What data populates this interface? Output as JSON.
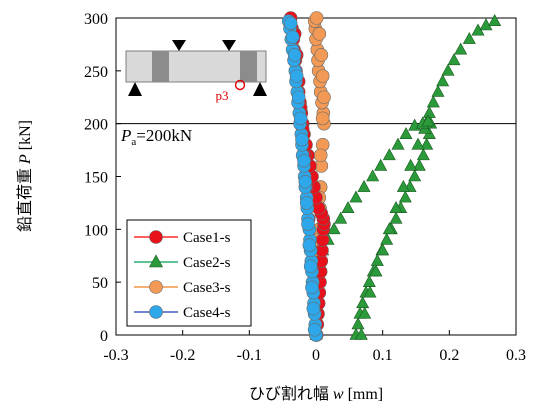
{
  "chart_data": {
    "type": "scatter",
    "title": "",
    "xlabel": "ひび割れ幅 w [mm]",
    "ylabel": "鉛直荷重 P [kN]",
    "xlabel_parts": {
      "text": "ひび割れ幅 ",
      "var": "w",
      "unit": " [mm]"
    },
    "ylabel_parts": {
      "text": "鉛直荷重 ",
      "var": "P",
      "unit": " [kN]"
    },
    "xlim": [
      -0.3,
      0.3
    ],
    "ylim": [
      0,
      300
    ],
    "x_ticks": [
      -0.3,
      -0.2,
      -0.1,
      0,
      0.1,
      0.2,
      0.3
    ],
    "x_tick_labels": [
      "-0.3",
      "-0.2",
      "-0.1",
      "0",
      "0.1",
      "0.2",
      "0.3"
    ],
    "y_ticks": [
      0,
      50,
      100,
      150,
      200,
      250,
      300
    ],
    "y_tick_labels": [
      "0",
      "50",
      "100",
      "150",
      "200",
      "250",
      "300"
    ],
    "grid": false,
    "legend_position": "bottom-left",
    "reference_line": {
      "y": 200,
      "label_var": "P",
      "label_sub": "a",
      "label_value": "=200kN"
    },
    "inset_label": "p3",
    "series": [
      {
        "name": "Case1-s",
        "marker": "circle",
        "line_color": "#ff0000",
        "fill_color": "#e8101a",
        "points": [
          [
            0.001,
            0
          ],
          [
            0.002,
            10
          ],
          [
            0.003,
            20
          ],
          [
            0.004,
            30
          ],
          [
            0.005,
            40
          ],
          [
            0.006,
            50
          ],
          [
            0.007,
            60
          ],
          [
            0.008,
            70
          ],
          [
            0.009,
            80
          ],
          [
            0.01,
            90
          ],
          [
            0.011,
            100
          ],
          [
            0.012,
            105
          ],
          [
            0.011,
            110
          ],
          [
            0.008,
            115
          ],
          [
            0.004,
            120
          ],
          [
            0.0,
            130
          ],
          [
            -0.003,
            140
          ],
          [
            -0.006,
            150
          ],
          [
            -0.009,
            160
          ],
          [
            -0.012,
            170
          ],
          [
            -0.015,
            180
          ],
          [
            -0.018,
            190
          ],
          [
            -0.02,
            200
          ],
          [
            -0.022,
            210
          ],
          [
            -0.024,
            220
          ],
          [
            -0.026,
            230
          ],
          [
            -0.028,
            240
          ],
          [
            -0.03,
            250
          ],
          [
            -0.031,
            260
          ],
          [
            -0.033,
            270
          ],
          [
            -0.034,
            280
          ],
          [
            -0.036,
            290
          ],
          [
            -0.04,
            297
          ],
          [
            -0.038,
            300
          ],
          [
            0.0,
            0
          ],
          [
            -0.002,
            20
          ],
          [
            -0.005,
            50
          ],
          [
            -0.008,
            80
          ],
          [
            -0.011,
            110
          ],
          [
            -0.014,
            140
          ],
          [
            -0.017,
            170
          ],
          [
            -0.02,
            195
          ],
          [
            -0.023,
            215
          ],
          [
            -0.026,
            240
          ],
          [
            -0.029,
            265
          ],
          [
            -0.032,
            285
          ]
        ]
      },
      {
        "name": "Case2-s",
        "marker": "triangle",
        "line_color": "#00a050",
        "fill_color": "#2a9a3a",
        "points": [
          [
            0.06,
            0
          ],
          [
            0.063,
            10
          ],
          [
            0.066,
            20
          ],
          [
            0.07,
            30
          ],
          [
            0.075,
            40
          ],
          [
            0.08,
            50
          ],
          [
            0.086,
            60
          ],
          [
            0.092,
            70
          ],
          [
            0.099,
            80
          ],
          [
            0.106,
            90
          ],
          [
            0.113,
            100
          ],
          [
            0.12,
            110
          ],
          [
            0.127,
            120
          ],
          [
            0.134,
            130
          ],
          [
            0.141,
            140
          ],
          [
            0.148,
            150
          ],
          [
            0.155,
            160
          ],
          [
            0.161,
            170
          ],
          [
            0.166,
            180
          ],
          [
            0.17,
            190
          ],
          [
            0.172,
            200
          ],
          [
            0.068,
            0
          ],
          [
            0.073,
            20
          ],
          [
            0.081,
            40
          ],
          [
            0.09,
            60
          ],
          [
            0.1,
            80
          ],
          [
            0.11,
            100
          ],
          [
            0.12,
            120
          ],
          [
            0.131,
            140
          ],
          [
            0.142,
            160
          ],
          [
            0.153,
            180
          ],
          [
            0.163,
            195
          ],
          [
            0.165,
            200
          ],
          [
            0.17,
            210
          ],
          [
            0.176,
            220
          ],
          [
            0.183,
            230
          ],
          [
            0.19,
            240
          ],
          [
            0.198,
            250
          ],
          [
            0.207,
            260
          ],
          [
            0.217,
            270
          ],
          [
            0.23,
            280
          ],
          [
            0.243,
            288
          ],
          [
            0.255,
            293
          ],
          [
            0.268,
            297
          ],
          [
            0.0,
            0
          ],
          [
            0.0,
            20
          ],
          [
            0.001,
            40
          ],
          [
            0.002,
            60
          ],
          [
            0.004,
            70
          ],
          [
            0.01,
            80
          ],
          [
            0.018,
            90
          ],
          [
            0.027,
            100
          ],
          [
            0.037,
            110
          ],
          [
            0.048,
            120
          ],
          [
            0.06,
            130
          ],
          [
            0.072,
            140
          ],
          [
            0.085,
            150
          ],
          [
            0.097,
            160
          ],
          [
            0.11,
            170
          ],
          [
            0.123,
            180
          ],
          [
            0.135,
            190
          ],
          [
            0.148,
            198
          ],
          [
            0.16,
            200
          ],
          [
            0.168,
            202
          ]
        ]
      },
      {
        "name": "Case3-s",
        "marker": "circle",
        "line_color": "#f08020",
        "fill_color": "#f29a55",
        "points": [
          [
            0.0,
            0
          ],
          [
            0.001,
            20
          ],
          [
            0.002,
            40
          ],
          [
            0.003,
            60
          ],
          [
            0.004,
            80
          ],
          [
            0.005,
            100
          ],
          [
            0.006,
            120
          ],
          [
            0.007,
            140
          ],
          [
            0.008,
            160
          ],
          [
            0.01,
            180
          ],
          [
            0.012,
            200
          ],
          [
            0.011,
            210
          ],
          [
            0.009,
            220
          ],
          [
            0.007,
            230
          ],
          [
            0.006,
            240
          ],
          [
            0.004,
            250
          ],
          [
            0.003,
            260
          ],
          [
            0.002,
            270
          ],
          [
            0.0,
            280
          ],
          [
            -0.001,
            290
          ],
          [
            -0.002,
            297
          ],
          [
            0.001,
            10
          ],
          [
            0.002,
            50
          ],
          [
            0.003,
            90
          ],
          [
            0.005,
            130
          ],
          [
            0.007,
            170
          ],
          [
            0.01,
            205
          ],
          [
            0.012,
            225
          ],
          [
            0.01,
            245
          ],
          [
            0.008,
            265
          ],
          [
            0.005,
            285
          ],
          [
            0.001,
            300
          ]
        ]
      },
      {
        "name": "Case4-s",
        "marker": "circle",
        "line_color": "#1f3fb5",
        "fill_color": "#2ea8ea",
        "points": [
          [
            0.0,
            0
          ],
          [
            -0.001,
            10
          ],
          [
            -0.002,
            20
          ],
          [
            -0.003,
            30
          ],
          [
            -0.004,
            40
          ],
          [
            -0.005,
            50
          ],
          [
            -0.006,
            60
          ],
          [
            -0.007,
            70
          ],
          [
            -0.008,
            80
          ],
          [
            -0.009,
            90
          ],
          [
            -0.01,
            100
          ],
          [
            -0.012,
            110
          ],
          [
            -0.013,
            120
          ],
          [
            -0.014,
            130
          ],
          [
            -0.016,
            140
          ],
          [
            -0.017,
            150
          ],
          [
            -0.018,
            160
          ],
          [
            -0.02,
            170
          ],
          [
            -0.021,
            180
          ],
          [
            -0.022,
            190
          ],
          [
            -0.024,
            200
          ],
          [
            -0.025,
            210
          ],
          [
            -0.027,
            220
          ],
          [
            -0.028,
            230
          ],
          [
            -0.03,
            240
          ],
          [
            -0.031,
            250
          ],
          [
            -0.033,
            260
          ],
          [
            -0.035,
            270
          ],
          [
            -0.037,
            280
          ],
          [
            -0.039,
            290
          ],
          [
            -0.041,
            297
          ],
          [
            -0.002,
            5
          ],
          [
            -0.004,
            25
          ],
          [
            -0.006,
            45
          ],
          [
            -0.008,
            65
          ],
          [
            -0.01,
            85
          ],
          [
            -0.012,
            105
          ],
          [
            -0.014,
            125
          ],
          [
            -0.016,
            145
          ],
          [
            -0.018,
            165
          ],
          [
            -0.021,
            185
          ],
          [
            -0.023,
            205
          ],
          [
            -0.026,
            225
          ],
          [
            -0.029,
            245
          ],
          [
            -0.032,
            265
          ],
          [
            -0.035,
            282
          ],
          [
            -0.038,
            295
          ]
        ]
      }
    ]
  }
}
